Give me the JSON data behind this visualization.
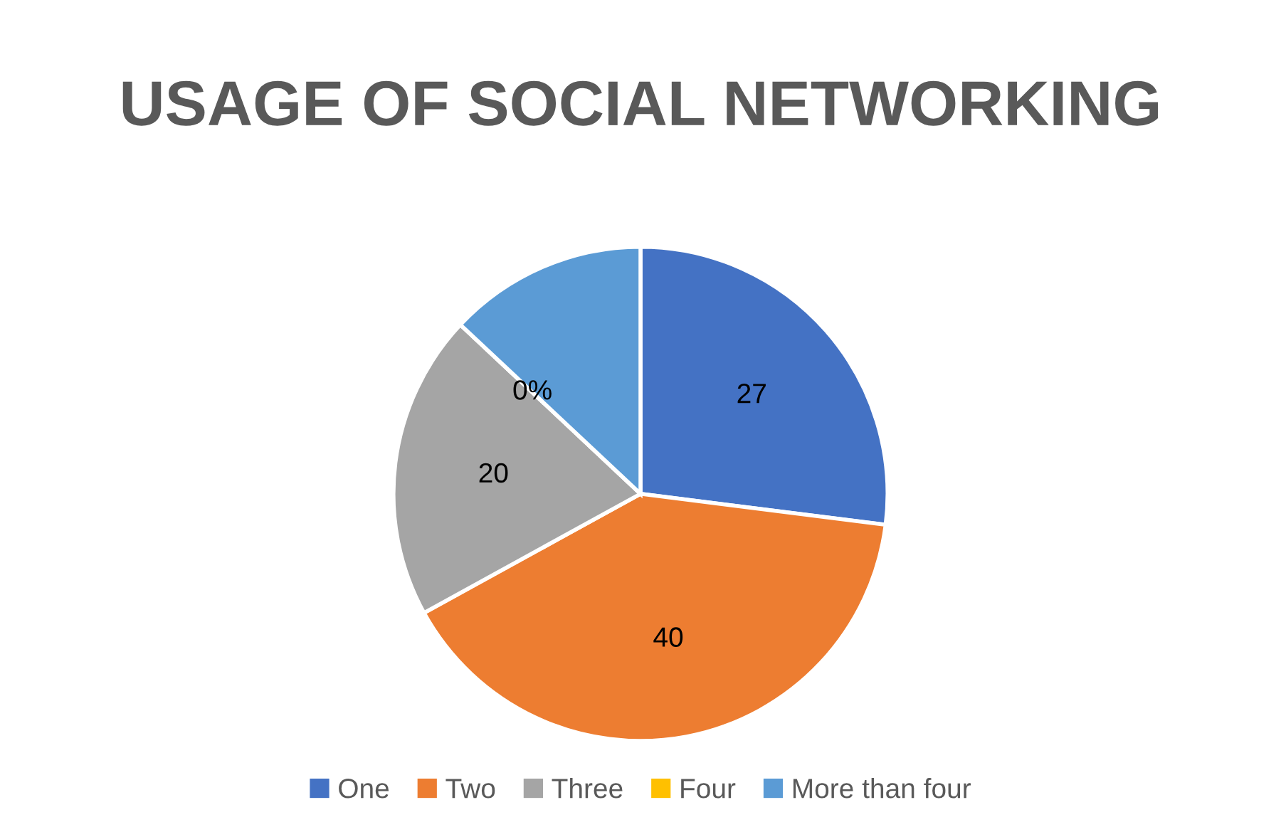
{
  "chart_data": {
    "type": "pie",
    "title": "USAGE OF SOCIAL NETWORKING",
    "categories": [
      "One",
      "Two",
      "Three",
      "Four",
      "More than four"
    ],
    "values": [
      27,
      40,
      20,
      0,
      13
    ],
    "colors": [
      "#4472c4",
      "#ed7d31",
      "#a5a5a5",
      "#ffc000",
      "#5b9bd5"
    ],
    "value_labels": [
      "27",
      "40",
      "20",
      "0%",
      null
    ],
    "legend": "bottom"
  }
}
